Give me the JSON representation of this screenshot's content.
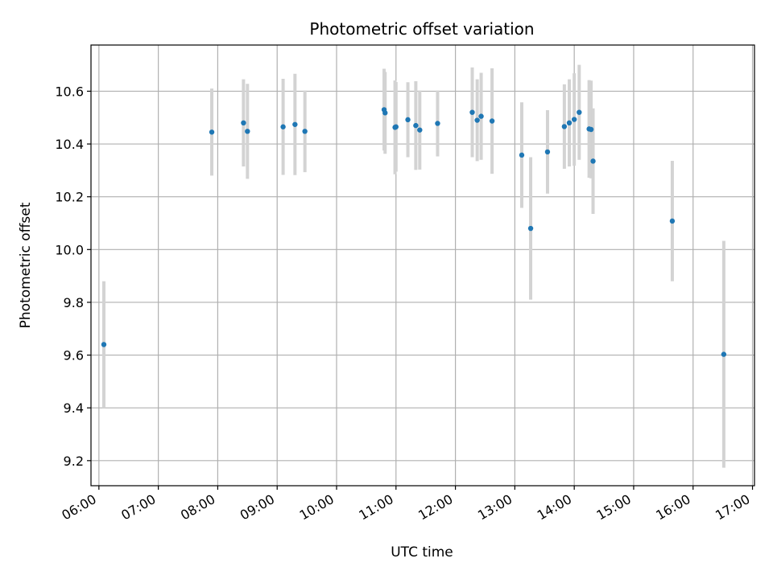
{
  "chart_data": {
    "type": "scatter",
    "title": "Photometric offset variation",
    "xlabel": "UTC time",
    "ylabel": "Photometric offset",
    "xlim": [
      "05:52",
      "17:02"
    ],
    "ylim": [
      9.105,
      10.775
    ],
    "grid": true,
    "x_ticks": [
      "06:00",
      "07:00",
      "08:00",
      "09:00",
      "10:00",
      "11:00",
      "12:00",
      "13:00",
      "14:00",
      "15:00",
      "16:00",
      "17:00"
    ],
    "y_ticks": [
      9.2,
      9.4,
      9.6,
      9.8,
      10.0,
      10.2,
      10.4,
      10.6
    ],
    "y_tick_labels": [
      "9.2",
      "9.4",
      "9.6",
      "9.8",
      "10.0",
      "10.2",
      "10.4",
      "10.6"
    ],
    "colors": {
      "points": "#1f77b4",
      "errorbars": "#d3d3d3",
      "grid": "#b0b0b0"
    },
    "series": [
      {
        "points": [
          {
            "x": "06:05",
            "y": 9.64,
            "err": 0.24
          },
          {
            "x": "07:54",
            "y": 10.445,
            "err": 0.165
          },
          {
            "x": "08:26",
            "y": 10.48,
            "err": 0.165
          },
          {
            "x": "08:30",
            "y": 10.448,
            "err": 0.18
          },
          {
            "x": "09:06",
            "y": 10.465,
            "err": 0.182
          },
          {
            "x": "09:18",
            "y": 10.474,
            "err": 0.192
          },
          {
            "x": "09:28",
            "y": 10.448,
            "err": 0.155
          },
          {
            "x": "10:48",
            "y": 10.53,
            "err": 0.155
          },
          {
            "x": "10:49",
            "y": 10.518,
            "err": 0.155
          },
          {
            "x": "10:59",
            "y": 10.463,
            "err": 0.178
          },
          {
            "x": "11:00",
            "y": 10.465,
            "err": 0.17
          },
          {
            "x": "11:12",
            "y": 10.492,
            "err": 0.142
          },
          {
            "x": "11:20",
            "y": 10.47,
            "err": 0.168
          },
          {
            "x": "11:24",
            "y": 10.453,
            "err": 0.15
          },
          {
            "x": "11:42",
            "y": 10.478,
            "err": 0.125
          },
          {
            "x": "12:17",
            "y": 10.52,
            "err": 0.17
          },
          {
            "x": "12:22",
            "y": 10.49,
            "err": 0.155
          },
          {
            "x": "12:26",
            "y": 10.505,
            "err": 0.165
          },
          {
            "x": "12:37",
            "y": 10.487,
            "err": 0.2
          },
          {
            "x": "13:07",
            "y": 10.358,
            "err": 0.2
          },
          {
            "x": "13:16",
            "y": 10.08,
            "err": 0.27
          },
          {
            "x": "13:33",
            "y": 10.37,
            "err": 0.158
          },
          {
            "x": "13:50",
            "y": 10.466,
            "err": 0.16
          },
          {
            "x": "13:55",
            "y": 10.48,
            "err": 0.165
          },
          {
            "x": "14:00",
            "y": 10.493,
            "err": 0.175
          },
          {
            "x": "14:05",
            "y": 10.52,
            "err": 0.18
          },
          {
            "x": "14:15",
            "y": 10.457,
            "err": 0.185
          },
          {
            "x": "14:17",
            "y": 10.455,
            "err": 0.185
          },
          {
            "x": "14:19",
            "y": 10.335,
            "err": 0.2
          },
          {
            "x": "15:39",
            "y": 10.108,
            "err": 0.228
          },
          {
            "x": "16:31",
            "y": 9.603,
            "err": 0.43
          }
        ]
      }
    ]
  }
}
